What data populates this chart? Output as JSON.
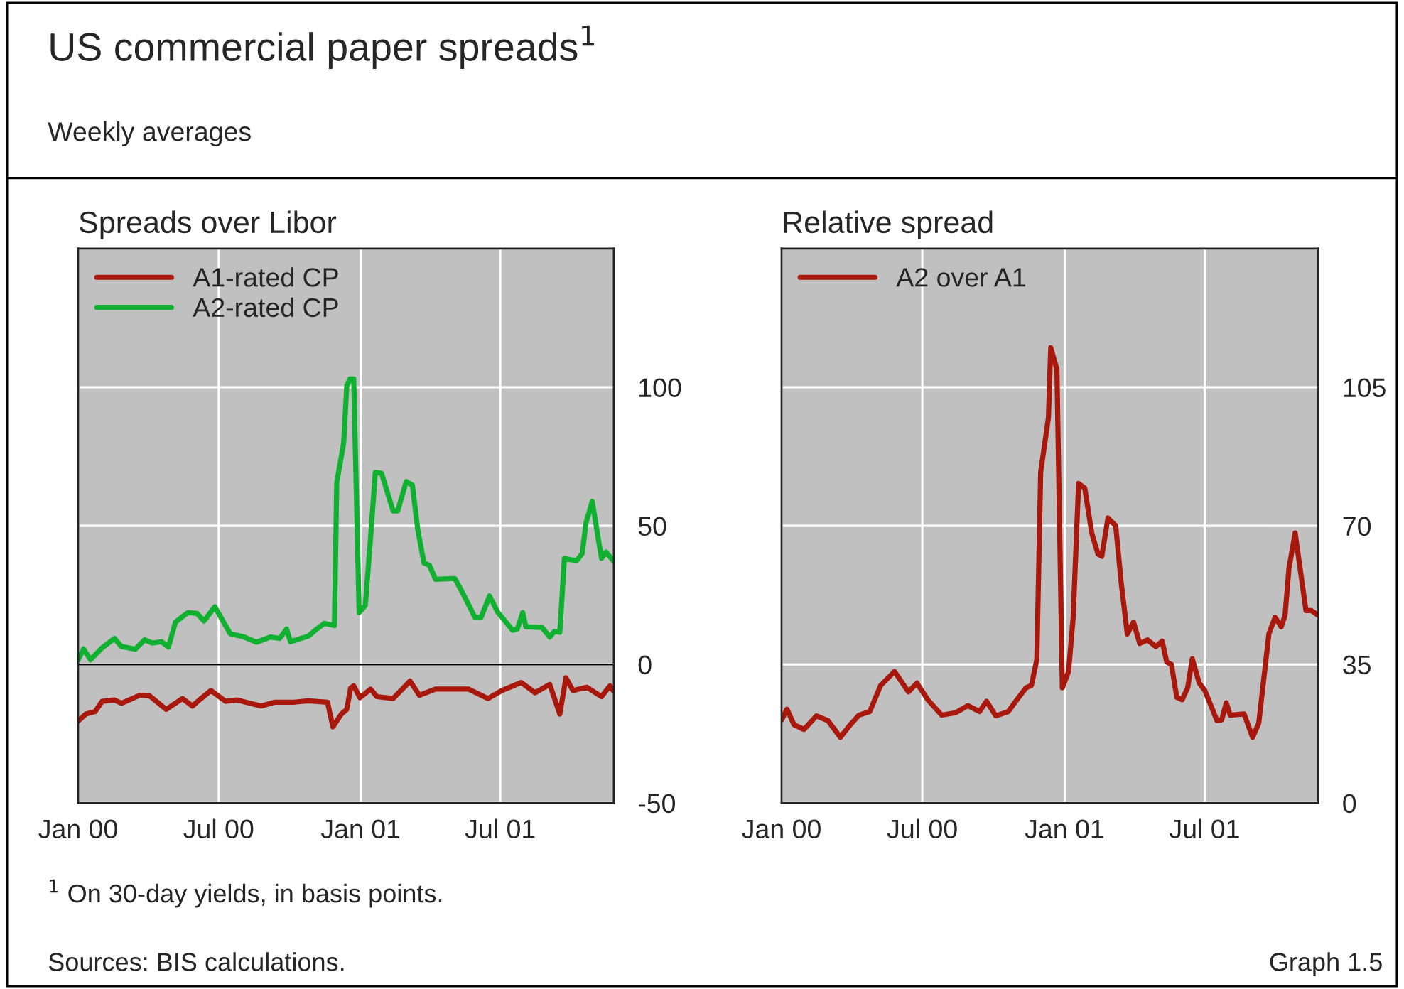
{
  "chart_data": [
    {
      "type": "line",
      "title": "Spreads over Libor",
      "legend": "top left",
      "grid": true,
      "annotations": [
        "US commercial paper spreads$^{1}$",
        "Weekly averages"
      ],
      "xlim": [
        "2000-01-01",
        "2001-11-25"
      ],
      "xticks": [
        {
          "value": "2000-01-01",
          "label": "Jan 00"
        },
        {
          "value": "2000-07-01",
          "label": "Jul 00"
        },
        {
          "value": "2001-01-01",
          "label": "Jan 01"
        },
        {
          "value": "2001-07-01",
          "label": "Jul 01"
        }
      ],
      "ylim": [
        -50,
        150
      ],
      "yticks": [
        -50,
        0,
        50,
        100
      ],
      "ref_lines": [
        {
          "axis": "y",
          "value": 0,
          "color": "#000000"
        }
      ],
      "series": [
        {
          "name": "A1-rated CP",
          "color": "#a8180c",
          "x": [
            "2000-01-01",
            "2000-01-11",
            "2000-01-23",
            "2000-02-01",
            "2000-02-17",
            "2000-02-26",
            "2000-03-21",
            "2000-04-03",
            "2000-04-24",
            "2000-05-15",
            "2000-05-28",
            "2000-06-06",
            "2000-06-21",
            "2000-07-10",
            "2000-07-25",
            "2000-08-25",
            "2000-09-12",
            "2000-10-07",
            "2000-10-25",
            "2000-11-19",
            "2000-11-26",
            "2000-12-07",
            "2000-12-14",
            "2000-12-19",
            "2000-12-23",
            "2000-12-31",
            "2001-01-14",
            "2001-01-22",
            "2001-02-12",
            "2001-03-06",
            "2001-03-18",
            "2001-04-08",
            "2001-05-21",
            "2001-06-15",
            "2001-07-03",
            "2001-07-28",
            "2001-08-15",
            "2001-09-03",
            "2001-09-16",
            "2001-09-24",
            "2001-10-03",
            "2001-10-21",
            "2001-11-09",
            "2001-11-20",
            "2001-11-24"
          ],
          "values": [
            -20.4,
            -17.9,
            -17,
            -13.3,
            -12.8,
            -14,
            -11.1,
            -11.4,
            -16.2,
            -12.3,
            -15,
            -12.8,
            -9.4,
            -13.3,
            -12.8,
            -15,
            -13.6,
            -13.6,
            -13.1,
            -13.6,
            -22.5,
            -17.9,
            -16.2,
            -8.5,
            -7.7,
            -12,
            -8.9,
            -11.6,
            -12.3,
            -6,
            -11.1,
            -8.9,
            -8.9,
            -12.3,
            -9.4,
            -6.5,
            -10.2,
            -7.2,
            -17.9,
            -4.8,
            -9.4,
            -8.2,
            -11.6,
            -7.7,
            -9.4
          ]
        },
        {
          "name": "A2-rated CP",
          "color": "#10b030",
          "x": [
            "2000-01-01",
            "2000-01-08",
            "2000-01-17",
            "2000-02-01",
            "2000-02-17",
            "2000-02-26",
            "2000-03-15",
            "2000-03-27",
            "2000-04-06",
            "2000-04-18",
            "2000-04-27",
            "2000-05-06",
            "2000-05-22",
            "2000-06-03",
            "2000-06-12",
            "2000-06-26",
            "2000-07-16",
            "2000-08-03",
            "2000-08-19",
            "2000-09-06",
            "2000-09-18",
            "2000-09-27",
            "2000-10-02",
            "2000-10-25",
            "2000-11-03",
            "2000-11-15",
            "2000-11-28",
            "2000-12-01",
            "2000-12-10",
            "2000-12-14",
            "2000-12-18",
            "2000-12-23",
            "2000-12-30",
            "2001-01-07",
            "2001-01-13",
            "2001-01-20",
            "2001-01-28",
            "2001-02-12",
            "2001-02-18",
            "2001-03-01",
            "2001-03-09",
            "2001-03-16",
            "2001-03-24",
            "2001-03-31",
            "2001-04-08",
            "2001-05-03",
            "2001-05-12",
            "2001-05-29",
            "2001-06-06",
            "2001-06-17",
            "2001-06-27",
            "2001-07-17",
            "2001-07-23",
            "2001-07-30",
            "2001-08-03",
            "2001-08-24",
            "2001-09-03",
            "2001-09-09",
            "2001-09-16",
            "2001-09-22",
            "2001-09-30",
            "2001-10-08",
            "2001-10-15",
            "2001-10-20",
            "2001-10-28",
            "2001-11-09",
            "2001-11-15",
            "2001-11-24"
          ],
          "values": [
            1.7,
            5.6,
            1.7,
            6,
            9.4,
            6.5,
            5.5,
            8.9,
            7.7,
            8.2,
            6.3,
            15.3,
            18.7,
            18.4,
            15.7,
            20.8,
            11.1,
            9.9,
            8,
            9.9,
            9.4,
            12.8,
            8.2,
            10.2,
            12.3,
            14.8,
            14,
            65.6,
            80,
            100.5,
            103,
            103,
            18.7,
            21.3,
            42.6,
            69.3,
            69,
            55.4,
            55.4,
            66,
            64.7,
            48.6,
            36.6,
            35.8,
            30.7,
            31,
            26.4,
            17,
            17,
            24.7,
            19.1,
            12.3,
            12.8,
            18.7,
            13.6,
            13.3,
            9.9,
            11.9,
            11.6,
            38.3,
            37.8,
            37.5,
            40,
            51.1,
            58.8,
            38.3,
            40.5,
            37.5
          ]
        }
      ]
    },
    {
      "type": "line",
      "title": "Relative spread",
      "legend": "top left",
      "grid": true,
      "annotations": [
        "$^{1}$ On 30-day yields, in basis points.",
        "Sources: BIS calculations.",
        "Graph 1.5"
      ],
      "xlim": [
        "2000-01-01",
        "2001-11-25"
      ],
      "xticks": [
        {
          "value": "2000-01-01",
          "label": "Jan 00"
        },
        {
          "value": "2000-07-01",
          "label": "Jul 00"
        },
        {
          "value": "2001-01-01",
          "label": "Jan 01"
        },
        {
          "value": "2001-07-01",
          "label": "Jul 01"
        }
      ],
      "ylim": [
        0,
        140
      ],
      "yticks": [
        0,
        35,
        70,
        105
      ],
      "series": [
        {
          "name": "A2 over A1",
          "color": "#a8180c",
          "x": [
            "2000-01-01",
            "2000-01-08",
            "2000-01-17",
            "2000-01-30",
            "2000-02-15",
            "2000-03-01",
            "2000-03-17",
            "2000-03-29",
            "2000-04-10",
            "2000-04-24",
            "2000-05-08",
            "2000-05-26",
            "2000-06-13",
            "2000-06-24",
            "2000-07-08",
            "2000-07-26",
            "2000-08-13",
            "2000-08-29",
            "2000-09-13",
            "2000-09-22",
            "2000-10-04",
            "2000-10-20",
            "2000-10-29",
            "2000-11-12",
            "2000-11-19",
            "2000-11-26",
            "2000-12-01",
            "2000-12-11",
            "2000-12-14",
            "2000-12-22",
            "2000-12-29",
            "2001-01-06",
            "2001-01-12",
            "2001-01-19",
            "2001-01-27",
            "2001-02-05",
            "2001-02-13",
            "2001-02-18",
            "2001-02-26",
            "2001-03-08",
            "2001-03-15",
            "2001-03-23",
            "2001-03-31",
            "2001-04-08",
            "2001-04-18",
            "2001-04-29",
            "2001-05-07",
            "2001-05-13",
            "2001-05-19",
            "2001-05-26",
            "2001-06-02",
            "2001-06-09",
            "2001-06-15",
            "2001-06-24",
            "2001-07-01",
            "2001-07-17",
            "2001-07-23",
            "2001-07-29",
            "2001-08-03",
            "2001-08-21",
            "2001-09-01",
            "2001-09-09",
            "2001-09-22",
            "2001-09-30",
            "2001-10-08",
            "2001-10-13",
            "2001-10-18",
            "2001-10-26",
            "2001-11-09",
            "2001-11-16",
            "2001-11-24"
          ],
          "values": [
            21,
            23.7,
            19.8,
            18.6,
            22,
            20.8,
            16.6,
            19.6,
            22.2,
            23.1,
            29.7,
            33.2,
            28.1,
            30.3,
            26.1,
            22.2,
            22.8,
            24.6,
            23.1,
            25.7,
            22,
            23.1,
            25.5,
            29.1,
            29.7,
            36.2,
            83.6,
            97.3,
            115,
            109.5,
            29.1,
            33.2,
            46.9,
            80.7,
            79.5,
            68.2,
            62.9,
            62.3,
            72,
            70,
            55.8,
            42.7,
            45.7,
            40.3,
            41.2,
            39.5,
            40.9,
            35.6,
            35,
            26.7,
            26.1,
            29.1,
            36.4,
            30.3,
            28.5,
            20.8,
            21,
            25.3,
            22.2,
            22.5,
            16.6,
            20.2,
            42.7,
            46.9,
            44.5,
            47.5,
            59.3,
            68.2,
            48.6,
            48.6,
            47.5
          ]
        }
      ]
    }
  ]
}
